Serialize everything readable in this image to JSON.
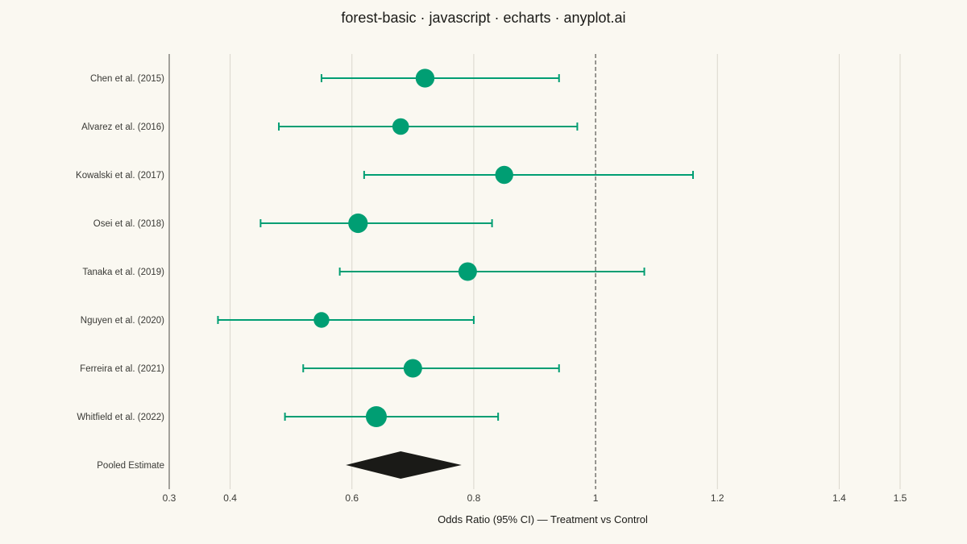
{
  "chart_data": {
    "type": "scatter",
    "title": "forest-basic · javascript · echarts · anyplot.ai",
    "xlabel": "Odds Ratio (95% CI) — Treatment vs Control",
    "ylabel": "",
    "xlim": [
      0.3,
      1.5
    ],
    "x_ticks": [
      0.3,
      0.4,
      0.6,
      0.8,
      1,
      1.2,
      1.4,
      1.5
    ],
    "x_tick_labels": [
      "0.3",
      "0.4",
      "0.6",
      "0.8",
      "1",
      "1.2",
      "1.4",
      "1.5"
    ],
    "reference_line": 1,
    "grid": true,
    "colors": {
      "study": "#009E73",
      "pooled": "#1A1A17",
      "background": "#FAF8F1"
    },
    "studies": [
      {
        "label": "Chen et al. (2015)",
        "estimate": 0.72,
        "ci_low": 0.55,
        "ci_high": 0.94,
        "weight": 0.78
      },
      {
        "label": "Alvarez et al. (2016)",
        "estimate": 0.68,
        "ci_low": 0.48,
        "ci_high": 0.97,
        "weight": 0.55
      },
      {
        "label": "Kowalski et al. (2017)",
        "estimate": 0.85,
        "ci_low": 0.62,
        "ci_high": 1.16,
        "weight": 0.7
      },
      {
        "label": "Osei et al. (2018)",
        "estimate": 0.61,
        "ci_low": 0.45,
        "ci_high": 0.83,
        "weight": 0.85
      },
      {
        "label": "Tanaka et al. (2019)",
        "estimate": 0.79,
        "ci_low": 0.58,
        "ci_high": 1.08,
        "weight": 0.75
      },
      {
        "label": "Nguyen et al. (2020)",
        "estimate": 0.55,
        "ci_low": 0.38,
        "ci_high": 0.8,
        "weight": 0.45
      },
      {
        "label": "Ferreira et al. (2021)",
        "estimate": 0.7,
        "ci_low": 0.52,
        "ci_high": 0.94,
        "weight": 0.75
      },
      {
        "label": "Whitfield et al. (2022)",
        "estimate": 0.64,
        "ci_low": 0.49,
        "ci_high": 0.84,
        "weight": 1.0
      }
    ],
    "pooled": {
      "label": "Pooled Estimate",
      "estimate": 0.68,
      "ci_low": 0.59,
      "ci_high": 0.78
    }
  }
}
